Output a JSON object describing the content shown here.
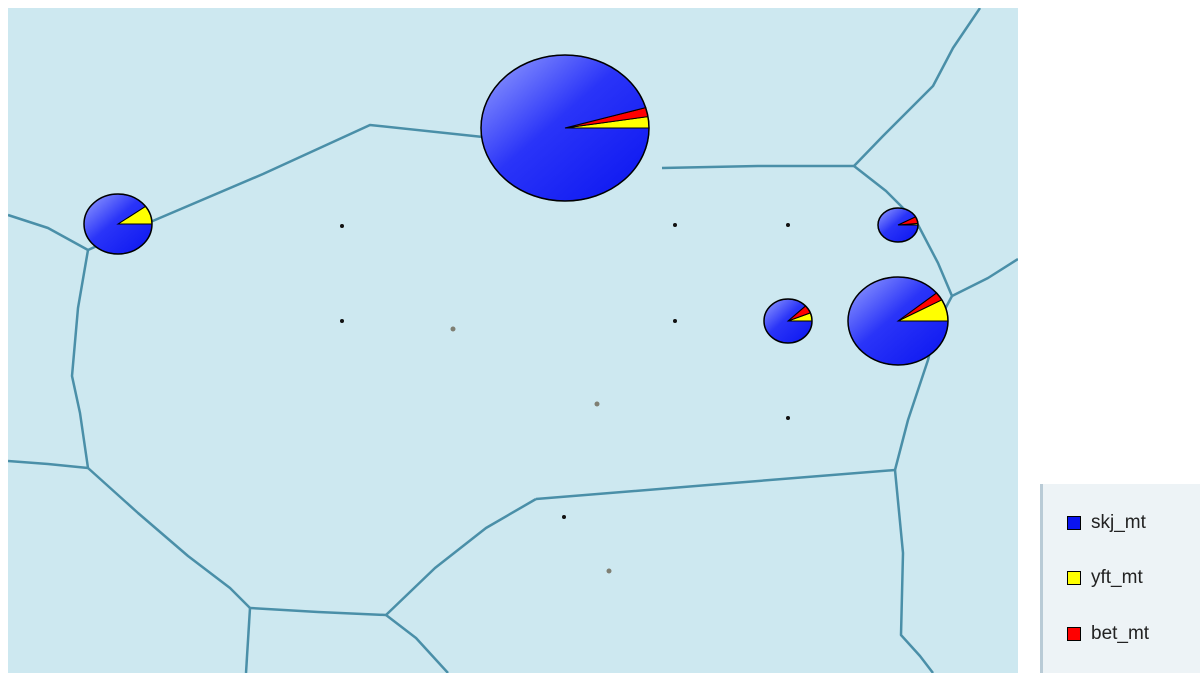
{
  "legend": {
    "items": [
      {
        "key": "skj",
        "label": "skj_mt",
        "color": "#0a14f0"
      },
      {
        "key": "yft",
        "label": "yft_mt",
        "color": "#ffff00"
      },
      {
        "key": "bet",
        "label": "bet_mt",
        "color": "#ff0000"
      }
    ]
  },
  "colors": {
    "sea": "#cde8f0",
    "boundary": "#4a8fa8",
    "pie_outline": "#000000",
    "dot_dark": "#111111",
    "dot_gray": "#7f7f73"
  },
  "catch_markers": [
    {
      "id": "north-center",
      "total": 1.0,
      "shares": {
        "skj": 0.955,
        "yft": 0.025,
        "bet": 0.02
      }
    },
    {
      "id": "west",
      "total": 0.14,
      "shares": {
        "skj": 0.9,
        "yft": 0.1,
        "bet": 0.0
      }
    },
    {
      "id": "east-upper",
      "total": 0.055,
      "shares": {
        "skj": 0.92,
        "yft": 0.015,
        "bet": 0.065
      }
    },
    {
      "id": "east-middle",
      "total": 0.075,
      "shares": {
        "skj": 0.88,
        "yft": 0.06,
        "bet": 0.06
      }
    },
    {
      "id": "east-large",
      "total": 0.31,
      "shares": {
        "skj": 0.89,
        "yft": 0.08,
        "bet": 0.03
      }
    }
  ]
}
